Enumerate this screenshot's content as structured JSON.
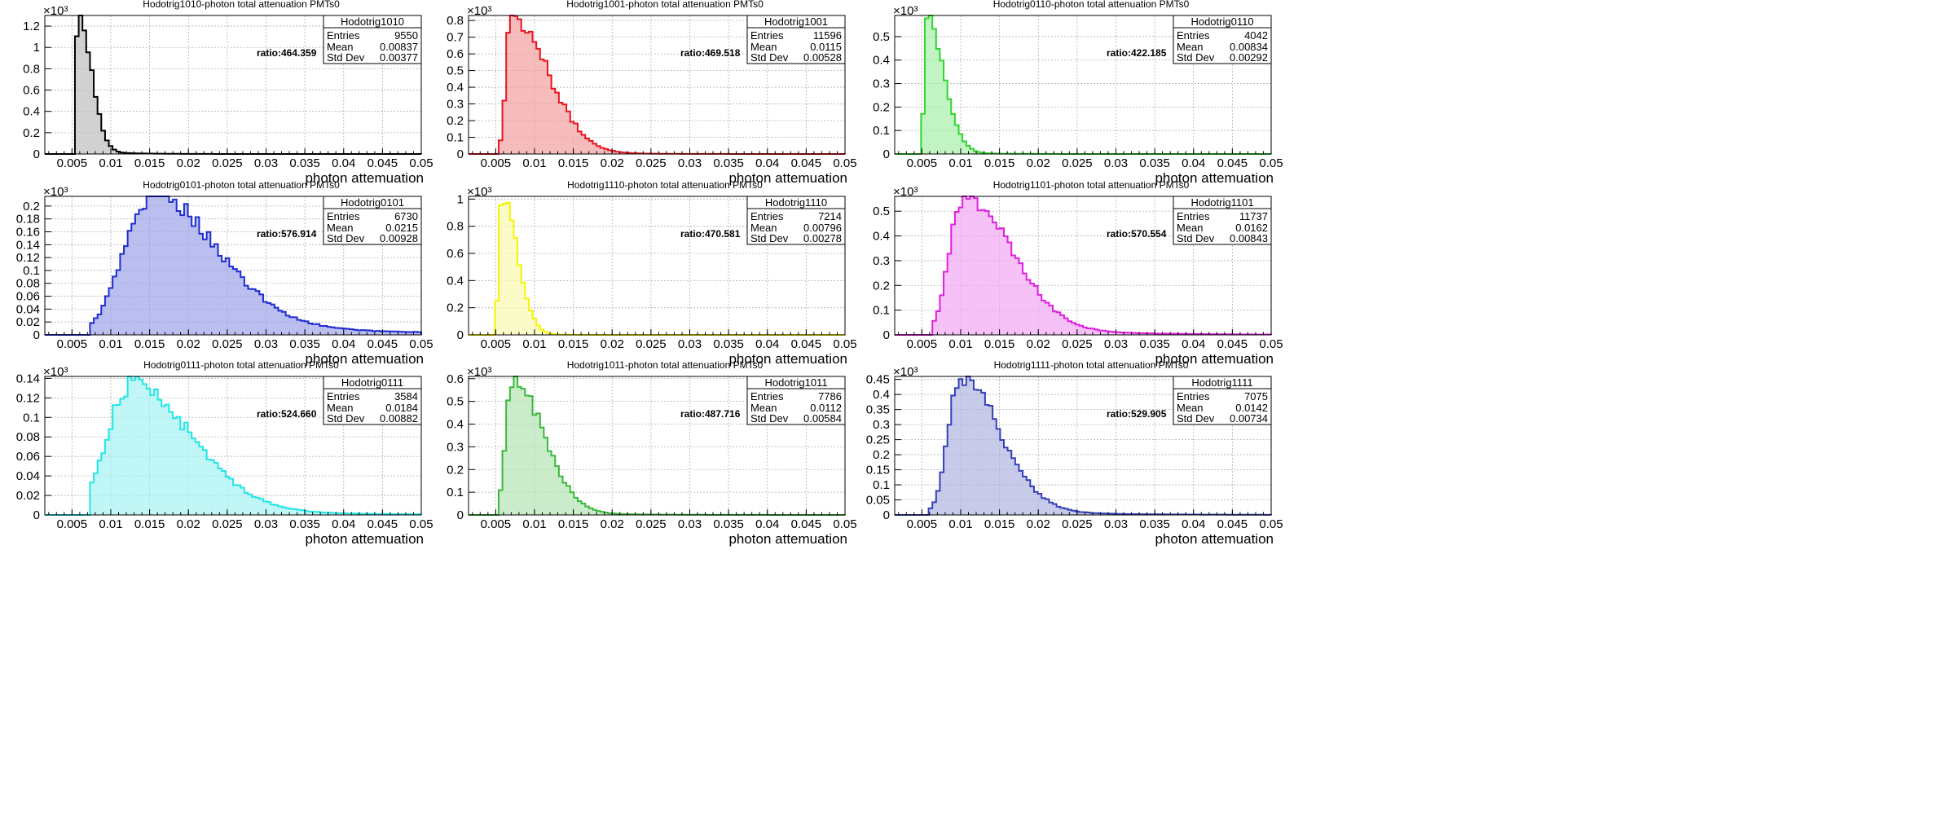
{
  "chart_data": [
    {
      "type": "histogram",
      "title": "Hodotrig1010-photon total attenuation PMTs0",
      "xlabel": "photon attemuation",
      "ylabel": "",
      "exponent_label": "×10³",
      "xlim": [
        0.0015,
        0.05
      ],
      "ylim": [
        0,
        1300
      ],
      "xticks": [
        "0.005",
        "0.01",
        "0.015",
        "0.02",
        "0.025",
        "0.03",
        "0.035",
        "0.04",
        "0.045",
        "0.05"
      ],
      "yticks": [
        0,
        200,
        400,
        600,
        800,
        1000,
        1200
      ],
      "ytick_labels": [
        "0",
        "0.2",
        "0.4",
        "0.6",
        "0.8",
        "1",
        "1.2"
      ],
      "grid": true,
      "color": "#000000",
      "fill": "#bdbdbd",
      "stats": {
        "name": "Hodotrig1010",
        "entries": "9550",
        "mean": "0.00837",
        "std": "0.00377"
      },
      "stats_labels": {
        "entries": "Entries",
        "mean": "Mean",
        "std": "Std Dev"
      },
      "annotation": "ratio:464.359",
      "shape": {
        "start": 0.0052,
        "mode": 0.0058,
        "peak": 1265,
        "sigL": 0.0004,
        "sigR": 0.0017,
        "tail": 0.004,
        "tailFrac": 0.03
      }
    },
    {
      "type": "histogram",
      "title": "Hodotrig1001-photon total attenuation PMTs0",
      "xlabel": "photon attemuation",
      "ylabel": "",
      "exponent_label": "×10³",
      "xlim": [
        0.0015,
        0.05
      ],
      "ylim": [
        0,
        830
      ],
      "xticks": [
        "0.005",
        "0.01",
        "0.015",
        "0.02",
        "0.025",
        "0.03",
        "0.035",
        "0.04",
        "0.045",
        "0.05"
      ],
      "yticks": [
        0,
        100,
        200,
        300,
        400,
        500,
        600,
        700,
        800
      ],
      "ytick_labels": [
        "0",
        "0.1",
        "0.2",
        "0.3",
        "0.4",
        "0.5",
        "0.6",
        "0.7",
        "0.8"
      ],
      "grid": true,
      "color": "#e8141e",
      "fill": "#f2a0a0",
      "stats": {
        "name": "Hodotrig1001",
        "entries": "11596",
        "mean": "0.0115",
        "std": "0.00528"
      },
      "stats_labels": {
        "entries": "Entries",
        "mean": "Mean",
        "std": "Std Dev"
      },
      "annotation": "ratio:469.518",
      "shape": {
        "start": 0.0056,
        "mode": 0.0069,
        "peak": 810,
        "sigL": 0.0006,
        "sigR": 0.0047,
        "tail": 0.006,
        "tailFrac": 0.04
      }
    },
    {
      "type": "histogram",
      "title": "Hodotrig0110-photon total attenuation PMTs0",
      "xlabel": "photon attemuation",
      "ylabel": "",
      "exponent_label": "×10³",
      "xlim": [
        0.0015,
        0.05
      ],
      "ylim": [
        0,
        590
      ],
      "xticks": [
        "0.005",
        "0.01",
        "0.015",
        "0.02",
        "0.025",
        "0.03",
        "0.035",
        "0.04",
        "0.045",
        "0.05"
      ],
      "yticks": [
        0,
        100,
        200,
        300,
        400,
        500
      ],
      "ytick_labels": [
        "0",
        "0.1",
        "0.2",
        "0.3",
        "0.4",
        "0.5"
      ],
      "grid": true,
      "color": "#2fd62f",
      "fill": "#a8eea8",
      "stats": {
        "name": "Hodotrig0110",
        "entries": "4042",
        "mean": "0.00834",
        "std": "0.00292"
      },
      "stats_labels": {
        "entries": "Entries",
        "mean": "Mean",
        "std": "Std Dev"
      },
      "annotation": "ratio:422.185",
      "shape": {
        "start": 0.0051,
        "mode": 0.0056,
        "peak": 570,
        "sigL": 0.0003,
        "sigR": 0.0022,
        "tail": 0.004,
        "tailFrac": 0.03
      }
    },
    {
      "type": "histogram",
      "title": "Hodotrig0101-photon total attenuation PMTs0",
      "xlabel": "photon attemuation",
      "ylabel": "",
      "exponent_label": "×10³",
      "xlim": [
        0.0015,
        0.05
      ],
      "ylim": [
        0,
        215
      ],
      "xticks": [
        "0.005",
        "0.01",
        "0.015",
        "0.02",
        "0.025",
        "0.03",
        "0.035",
        "0.04",
        "0.045",
        "0.05"
      ],
      "yticks": [
        0,
        20,
        40,
        60,
        80,
        100,
        120,
        140,
        160,
        180,
        200
      ],
      "ytick_labels": [
        "0",
        "0.02",
        "0.04",
        "0.06",
        "0.08",
        "0.1",
        "0.12",
        "0.14",
        "0.16",
        "0.18",
        "0.2"
      ],
      "grid": true,
      "color": "#1f2bd1",
      "fill": "#9ea4e8",
      "stats": {
        "name": "Hodotrig0101",
        "entries": "6730",
        "mean": "0.0215",
        "std": "0.00928"
      },
      "stats_labels": {
        "entries": "Entries",
        "mean": "Mean",
        "std": "Std Dev"
      },
      "annotation": "ratio:576.914",
      "shape": {
        "start": 0.0072,
        "mode": 0.0148,
        "peak": 205,
        "sigL": 0.0033,
        "sigR": 0.0085,
        "tail": 0.02,
        "tailFrac": 0.12
      }
    },
    {
      "type": "histogram",
      "title": "Hodotrig1110-photon total attenuation PMTs0",
      "xlabel": "photon attemuation",
      "ylabel": "",
      "exponent_label": "×10³",
      "xlim": [
        0.0015,
        0.05
      ],
      "ylim": [
        0,
        1020
      ],
      "xticks": [
        "0.005",
        "0.01",
        "0.015",
        "0.02",
        "0.025",
        "0.03",
        "0.035",
        "0.04",
        "0.045",
        "0.05"
      ],
      "yticks": [
        0,
        200,
        400,
        600,
        800,
        1000
      ],
      "ytick_labels": [
        "0",
        "0.2",
        "0.4",
        "0.6",
        "0.8",
        "1"
      ],
      "grid": true,
      "color": "#f5f500",
      "fill": "#fafab0",
      "stats": {
        "name": "Hodotrig1110",
        "entries": "7214",
        "mean": "0.00796",
        "std": "0.00278"
      },
      "stats_labels": {
        "entries": "Entries",
        "mean": "Mean",
        "std": "Std Dev"
      },
      "annotation": "ratio:470.581",
      "shape": {
        "start": 0.005,
        "mode": 0.0058,
        "peak": 990,
        "sigL": 0.0004,
        "sigR": 0.002,
        "tail": 0.003,
        "tailFrac": 0.02
      }
    },
    {
      "type": "histogram",
      "title": "Hodotrig1101-photon total attenuation PMTs0",
      "xlabel": "photon attemuation",
      "ylabel": "",
      "exponent_label": "×10³",
      "xlim": [
        0.0015,
        0.05
      ],
      "ylim": [
        0,
        560
      ],
      "xticks": [
        "0.005",
        "0.01",
        "0.015",
        "0.02",
        "0.025",
        "0.03",
        "0.035",
        "0.04",
        "0.045",
        "0.05"
      ],
      "yticks": [
        0,
        100,
        200,
        300,
        400,
        500
      ],
      "ytick_labels": [
        "0",
        "0.1",
        "0.2",
        "0.3",
        "0.4",
        "0.5"
      ],
      "grid": true,
      "color": "#e01ee0",
      "fill": "#f2a6f2",
      "stats": {
        "name": "Hodotrig1101",
        "entries": "11737",
        "mean": "0.0162",
        "std": "0.00843"
      },
      "stats_labels": {
        "entries": "Entries",
        "mean": "Mean",
        "std": "Std Dev"
      },
      "annotation": "ratio:570.554",
      "shape": {
        "start": 0.0062,
        "mode": 0.0102,
        "peak": 535,
        "sigL": 0.0017,
        "sigR": 0.0062,
        "tail": 0.012,
        "tailFrac": 0.08
      }
    },
    {
      "type": "histogram",
      "title": "Hodotrig0111-photon total attenuation PMTs0",
      "xlabel": "photon attemuation",
      "ylabel": "",
      "exponent_label": "×10³",
      "xlim": [
        0.0015,
        0.05
      ],
      "ylim": [
        0,
        142
      ],
      "xticks": [
        "0.005",
        "0.01",
        "0.015",
        "0.02",
        "0.025",
        "0.03",
        "0.035",
        "0.04",
        "0.045",
        "0.05"
      ],
      "yticks": [
        0,
        20,
        40,
        60,
        80,
        100,
        120,
        140
      ],
      "ytick_labels": [
        "0",
        "0.02",
        "0.04",
        "0.06",
        "0.08",
        "0.1",
        "0.12",
        "0.14"
      ],
      "grid": true,
      "color": "#22e6e6",
      "fill": "#a6f2f2",
      "stats": {
        "name": "Hodotrig0111",
        "entries": "3584",
        "mean": "0.0184",
        "std": "0.00882"
      },
      "stats_labels": {
        "entries": "Entries",
        "mean": "Mean",
        "std": "Std Dev"
      },
      "annotation": "ratio:524.660",
      "shape": {
        "start": 0.0072,
        "mode": 0.0122,
        "peak": 128,
        "sigL": 0.0028,
        "sigR": 0.008,
        "tail": 0.014,
        "tailFrac": 0.08
      }
    },
    {
      "type": "histogram",
      "title": "Hodotrig1011-photon total attenuation PMTs0",
      "xlabel": "photon attemuation",
      "ylabel": "",
      "exponent_label": "×10³",
      "xlim": [
        0.0015,
        0.05
      ],
      "ylim": [
        0,
        610
      ],
      "xticks": [
        "0.005",
        "0.01",
        "0.015",
        "0.02",
        "0.025",
        "0.03",
        "0.035",
        "0.04",
        "0.045",
        "0.05"
      ],
      "yticks": [
        0,
        100,
        200,
        300,
        400,
        500,
        600
      ],
      "ytick_labels": [
        "0",
        "0.1",
        "0.2",
        "0.3",
        "0.4",
        "0.5",
        "0.6"
      ],
      "grid": true,
      "color": "#3cb83c",
      "fill": "#b4e4b4",
      "stats": {
        "name": "Hodotrig1011",
        "entries": "7786",
        "mean": "0.0112",
        "std": "0.00584"
      },
      "stats_labels": {
        "entries": "Entries",
        "mean": "Mean",
        "std": "Std Dev"
      },
      "annotation": "ratio:487.716",
      "shape": {
        "start": 0.0055,
        "mode": 0.0071,
        "peak": 585,
        "sigL": 0.0008,
        "sigR": 0.004,
        "tail": 0.007,
        "tailFrac": 0.04
      }
    },
    {
      "type": "histogram",
      "title": "Hodotrig1111-photon total attenuation PMTs0",
      "xlabel": "photon attemuation",
      "ylabel": "",
      "exponent_label": "×10³",
      "xlim": [
        0.0015,
        0.05
      ],
      "ylim": [
        0,
        460
      ],
      "xticks": [
        "0.005",
        "0.01",
        "0.015",
        "0.02",
        "0.025",
        "0.03",
        "0.035",
        "0.04",
        "0.045",
        "0.05"
      ],
      "yticks": [
        0,
        50,
        100,
        150,
        200,
        250,
        300,
        350,
        400,
        450
      ],
      "ytick_labels": [
        "0",
        "0.05",
        "0.1",
        "0.15",
        "0.2",
        "0.25",
        "0.3",
        "0.35",
        "0.4",
        "0.45"
      ],
      "grid": true,
      "color": "#3340b8",
      "fill": "#b0b4e0",
      "stats": {
        "name": "Hodotrig1111",
        "entries": "7075",
        "mean": "0.0142",
        "std": "0.00734"
      },
      "stats_labels": {
        "entries": "Entries",
        "mean": "Mean",
        "std": "Std Dev"
      },
      "annotation": "ratio:529.905",
      "shape": {
        "start": 0.006,
        "mode": 0.0098,
        "peak": 440,
        "sigL": 0.0015,
        "sigR": 0.0052,
        "tail": 0.01,
        "tailFrac": 0.06
      }
    }
  ]
}
